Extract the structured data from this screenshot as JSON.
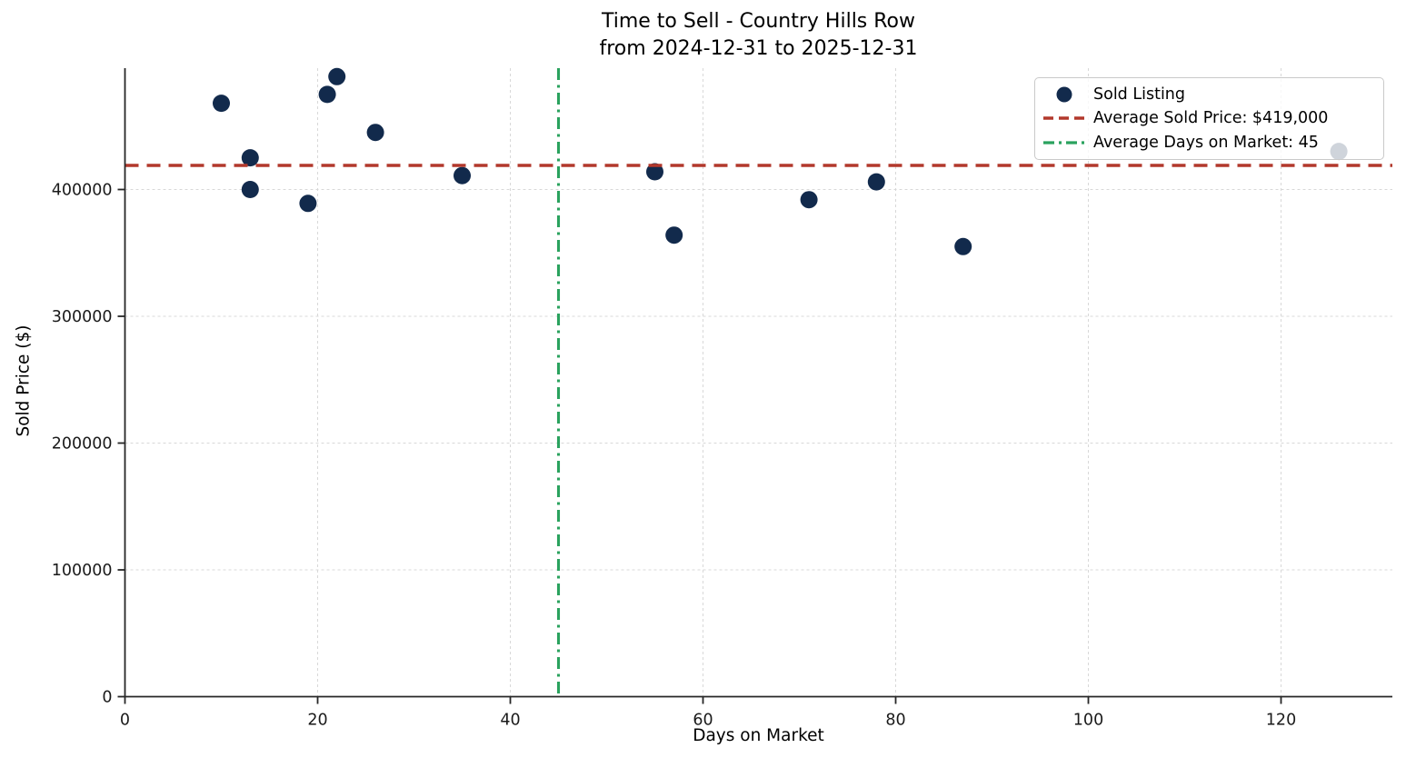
{
  "title": {
    "line1": "Time to Sell - Country Hills Row",
    "line2": "from 2024-12-31 to 2025-12-31"
  },
  "chart_data": {
    "type": "scatter",
    "title": "Time to Sell - Country Hills Row from 2024-12-31 to 2025-12-31",
    "xlabel": "Days on Market",
    "ylabel": "Sold Price ($)",
    "xticks": [
      0,
      20,
      40,
      60,
      80,
      100,
      120
    ],
    "yticks": [
      0,
      100000,
      200000,
      300000,
      400000
    ],
    "xlim": [
      0,
      131.5
    ],
    "ylim": [
      0,
      495000
    ],
    "grid": true,
    "legend_position": "upper right",
    "point_color": "#122a4c",
    "grid_color": "#b9b9b9",
    "axis_color": "#262626",
    "series": [
      {
        "name": "Sold Listing",
        "points": [
          {
            "days": 10,
            "price": 468000
          },
          {
            "days": 13,
            "price": 425000
          },
          {
            "days": 13,
            "price": 400000
          },
          {
            "days": 19,
            "price": 389000
          },
          {
            "days": 21,
            "price": 475000
          },
          {
            "days": 22,
            "price": 489000
          },
          {
            "days": 26,
            "price": 445000
          },
          {
            "days": 35,
            "price": 411000
          },
          {
            "days": 55,
            "price": 414000
          },
          {
            "days": 57,
            "price": 364000
          },
          {
            "days": 71,
            "price": 392000
          },
          {
            "days": 78,
            "price": 406000
          },
          {
            "days": 87,
            "price": 355000
          },
          {
            "days": 126,
            "price": 430000
          }
        ]
      }
    ],
    "avg_sold_price": {
      "value": 419000,
      "label": "Average Sold Price: $419,000",
      "color": "#b2382c",
      "style": "dashed"
    },
    "avg_days_on_market": {
      "value": 45,
      "label": "Average Days on Market: 45",
      "color": "#2aa25e",
      "style": "dashdot"
    }
  }
}
